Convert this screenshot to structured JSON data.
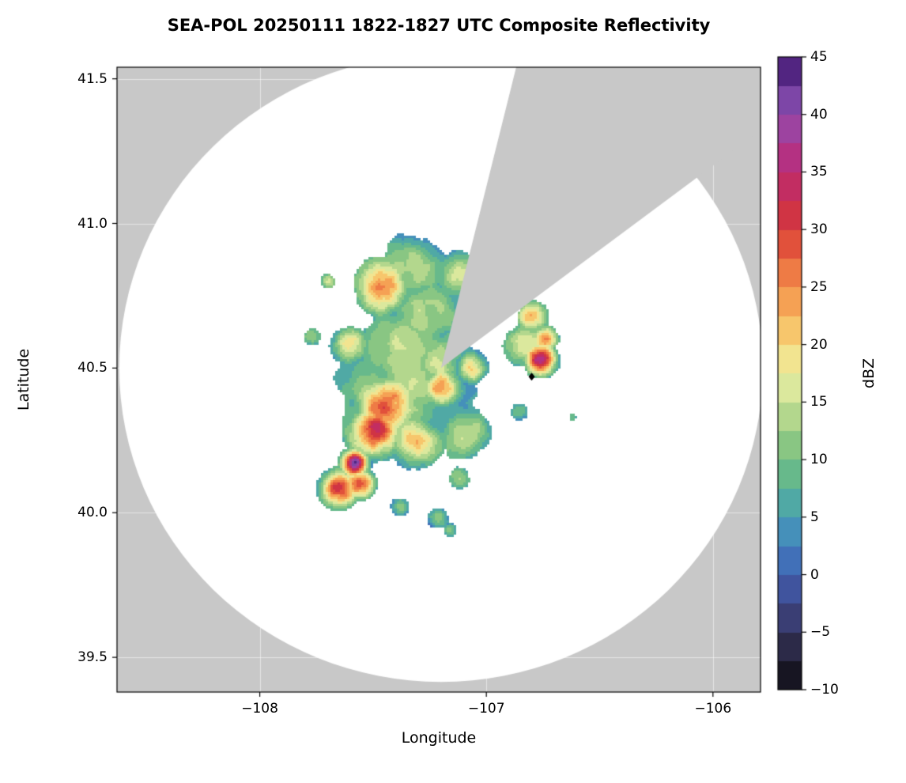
{
  "chart_data": {
    "type": "heatmap",
    "title": "SEA-POL 20250111 1822-1827 UTC Composite Reflectivity",
    "xlabel": "Longitude",
    "ylabel": "Latitude",
    "colorbar_label": "dBZ",
    "xlim": [
      -108.63,
      -105.79
    ],
    "ylim": [
      39.38,
      41.54
    ],
    "xticks": [
      {
        "value": -108,
        "label": "−108"
      },
      {
        "value": -107,
        "label": "−107"
      },
      {
        "value": -106,
        "label": "−106"
      }
    ],
    "yticks": [
      {
        "value": 39.5,
        "label": "39.5"
      },
      {
        "value": 40.0,
        "label": "40.0"
      },
      {
        "value": 40.5,
        "label": "40.5"
      },
      {
        "value": 41.0,
        "label": "41.0"
      },
      {
        "value": 41.5,
        "label": "41.5"
      }
    ],
    "colorbar_range": [
      -10,
      45
    ],
    "colorbar_ticks": [
      {
        "value": 45,
        "label": "45"
      },
      {
        "value": 40,
        "label": "40"
      },
      {
        "value": 35,
        "label": "35"
      },
      {
        "value": 30,
        "label": "30"
      },
      {
        "value": 25,
        "label": "25"
      },
      {
        "value": 20,
        "label": "20"
      },
      {
        "value": 15,
        "label": "15"
      },
      {
        "value": 10,
        "label": "10"
      },
      {
        "value": 5,
        "label": "5"
      },
      {
        "value": 0,
        "label": "0"
      },
      {
        "value": -5,
        "label": "−5"
      },
      {
        "value": -10,
        "label": "−10"
      }
    ],
    "background_color": "#c8c8c8",
    "grid": {
      "color": "#ffffff",
      "alpha": 0.5
    },
    "radar": {
      "center_lon": -107.2,
      "center_lat": 40.5,
      "range_lon_deg": 1.42,
      "range_lat_deg": 1.085,
      "missing_sector_azimuth_deg": [
        13.7,
        53.5
      ]
    },
    "marker": {
      "lon": -106.8,
      "lat": 40.47,
      "shape": "diamond",
      "color": "#000000"
    },
    "noise_seed": 7,
    "colormap_stops": [
      {
        "value": -10,
        "color": "#0a0a10"
      },
      {
        "value": -7.5,
        "color": "#231f33"
      },
      {
        "value": -5,
        "color": "#34345c"
      },
      {
        "value": -2.5,
        "color": "#3f478c"
      },
      {
        "value": 0,
        "color": "#4060b0"
      },
      {
        "value": 2.5,
        "color": "#4280c0"
      },
      {
        "value": 5,
        "color": "#47a0b4"
      },
      {
        "value": 7.5,
        "color": "#58b295"
      },
      {
        "value": 10,
        "color": "#75bf80"
      },
      {
        "value": 12.5,
        "color": "#9dcd85"
      },
      {
        "value": 15,
        "color": "#c8e095"
      },
      {
        "value": 17.5,
        "color": "#edefa5"
      },
      {
        "value": 20,
        "color": "#f6d87b"
      },
      {
        "value": 22.5,
        "color": "#f7b35c"
      },
      {
        "value": 25,
        "color": "#f28f4c"
      },
      {
        "value": 27.5,
        "color": "#ea663d"
      },
      {
        "value": 30,
        "color": "#d83b38"
      },
      {
        "value": 32.5,
        "color": "#c72c50"
      },
      {
        "value": 35,
        "color": "#bd2d74"
      },
      {
        "value": 37.5,
        "color": "#ab3590"
      },
      {
        "value": 40,
        "color": "#8f51b0"
      },
      {
        "value": 42.5,
        "color": "#6a3a9e"
      },
      {
        "value": 45,
        "color": "#3a0f63"
      }
    ],
    "echo_cores": [
      {
        "lon": -107.46,
        "lat": 40.78,
        "r": 0.1,
        "dbz": 28
      },
      {
        "lon": -107.32,
        "lat": 40.85,
        "r": 0.13,
        "dbz": 16
      },
      {
        "lon": -107.12,
        "lat": 40.82,
        "r": 0.1,
        "dbz": 15
      },
      {
        "lon": -107.28,
        "lat": 40.7,
        "r": 0.14,
        "dbz": 14
      },
      {
        "lon": -107.7,
        "lat": 40.8,
        "r": 0.035,
        "dbz": 12
      },
      {
        "lon": -107.77,
        "lat": 40.61,
        "r": 0.04,
        "dbz": 13
      },
      {
        "lon": -107.6,
        "lat": 40.58,
        "r": 0.07,
        "dbz": 20
      },
      {
        "lon": -107.38,
        "lat": 40.55,
        "r": 0.18,
        "dbz": 15
      },
      {
        "lon": -107.2,
        "lat": 40.52,
        "r": 0.12,
        "dbz": 16
      },
      {
        "lon": -107.07,
        "lat": 40.5,
        "r": 0.06,
        "dbz": 24
      },
      {
        "lon": -107.44,
        "lat": 40.37,
        "r": 0.12,
        "dbz": 27
      },
      {
        "lon": -107.19,
        "lat": 40.43,
        "r": 0.08,
        "dbz": 25
      },
      {
        "lon": -107.04,
        "lat": 40.42,
        "r": 0.05,
        "dbz": 6
      },
      {
        "lon": -107.31,
        "lat": 40.25,
        "r": 0.1,
        "dbz": 24
      },
      {
        "lon": -107.49,
        "lat": 40.28,
        "r": 0.1,
        "dbz": 30
      },
      {
        "lon": -107.58,
        "lat": 40.17,
        "r": 0.05,
        "dbz": 40
      },
      {
        "lon": -107.65,
        "lat": 40.08,
        "r": 0.07,
        "dbz": 30
      },
      {
        "lon": -107.56,
        "lat": 40.1,
        "r": 0.06,
        "dbz": 26
      },
      {
        "lon": -107.1,
        "lat": 40.28,
        "r": 0.12,
        "dbz": 13
      },
      {
        "lon": -107.35,
        "lat": 40.42,
        "r": 0.3,
        "dbz": 13
      },
      {
        "lon": -106.85,
        "lat": 40.35,
        "r": 0.04,
        "dbz": 10
      },
      {
        "lon": -106.8,
        "lat": 40.68,
        "r": 0.06,
        "dbz": 20
      },
      {
        "lon": -106.74,
        "lat": 40.6,
        "r": 0.05,
        "dbz": 22
      },
      {
        "lon": -106.76,
        "lat": 40.53,
        "r": 0.06,
        "dbz": 30
      },
      {
        "lon": -106.82,
        "lat": 40.58,
        "r": 0.1,
        "dbz": 13
      },
      {
        "lon": -107.38,
        "lat": 40.02,
        "r": 0.04,
        "dbz": 12
      },
      {
        "lon": -107.21,
        "lat": 39.98,
        "r": 0.045,
        "dbz": 13
      },
      {
        "lon": -107.16,
        "lat": 39.94,
        "r": 0.03,
        "dbz": 12
      },
      {
        "lon": -107.12,
        "lat": 40.12,
        "r": 0.05,
        "dbz": 13
      },
      {
        "lon": -106.62,
        "lat": 40.33,
        "r": 0.03,
        "dbz": 9
      }
    ]
  }
}
